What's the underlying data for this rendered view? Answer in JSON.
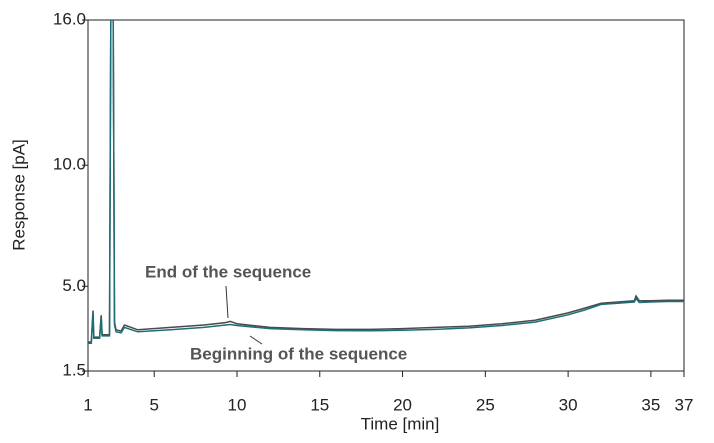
{
  "chart_data": {
    "type": "line",
    "x_label": "Time [min]",
    "y_label": "Response [pA]",
    "x": [
      1.0,
      1.2,
      1.3,
      1.35,
      1.5,
      1.7,
      1.8,
      1.85,
      2.0,
      2.3,
      2.4,
      2.5,
      2.6,
      2.7,
      3.0,
      3.2,
      4,
      6,
      8,
      9.3,
      9.6,
      10,
      12,
      14,
      16,
      18,
      20,
      22,
      24,
      26,
      28,
      30,
      31,
      32,
      33,
      34,
      34.1,
      34.3,
      35,
      36,
      37
    ],
    "series": [
      {
        "name": "End of the sequence",
        "color": "#4a4a4a",
        "values": [
          2.7,
          2.7,
          4.0,
          2.9,
          2.9,
          2.9,
          3.8,
          3.0,
          3.0,
          3.0,
          20,
          20,
          3.5,
          3.2,
          3.15,
          3.4,
          3.2,
          3.3,
          3.4,
          3.5,
          3.55,
          3.45,
          3.3,
          3.25,
          3.22,
          3.22,
          3.25,
          3.3,
          3.35,
          3.45,
          3.6,
          3.9,
          4.1,
          4.3,
          4.35,
          4.4,
          4.6,
          4.4,
          4.4,
          4.42,
          4.42
        ]
      },
      {
        "name": "Beginning of the sequence",
        "color": "#1d6e78",
        "values": [
          2.65,
          2.65,
          3.9,
          2.85,
          2.85,
          2.85,
          3.7,
          2.95,
          2.95,
          2.95,
          20,
          20,
          3.4,
          3.12,
          3.08,
          3.3,
          3.12,
          3.2,
          3.3,
          3.4,
          3.42,
          3.38,
          3.25,
          3.2,
          3.17,
          3.16,
          3.18,
          3.22,
          3.28,
          3.38,
          3.52,
          3.82,
          4.02,
          4.25,
          4.3,
          4.35,
          4.5,
          4.33,
          4.35,
          4.37,
          4.37
        ]
      }
    ],
    "xlim": [
      1,
      37
    ],
    "xticks": [
      1,
      5,
      10,
      15,
      20,
      25,
      30,
      35,
      37
    ],
    "ylim": [
      1.5,
      16
    ],
    "yticks": [
      1.5,
      {
        "value": 5,
        "label": "5.0"
      },
      {
        "value": 10,
        "label": "10.0"
      },
      {
        "value": 16,
        "label": "16.0"
      }
    ],
    "grid": false
  }
}
